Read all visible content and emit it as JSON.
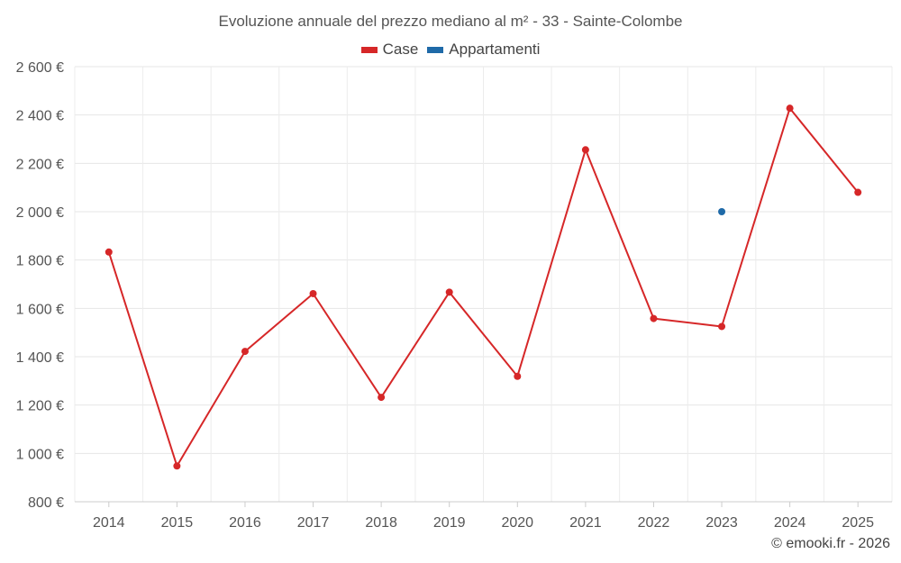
{
  "chart_data": {
    "type": "line",
    "title": "Evoluzione annuale del prezzo mediano al m² - 33 - Sainte-Colombe",
    "categories": [
      "2014",
      "2015",
      "2016",
      "2017",
      "2018",
      "2019",
      "2020",
      "2021",
      "2022",
      "2023",
      "2024",
      "2025"
    ],
    "series": [
      {
        "name": "Case",
        "color": "#d62728",
        "values": [
          1833,
          948,
          1422,
          1661,
          1232,
          1667,
          1319,
          2256,
          1558,
          1525,
          2428,
          2080
        ]
      },
      {
        "name": "Appartamenti",
        "color": "#1f6aa8",
        "values": [
          null,
          null,
          null,
          null,
          null,
          null,
          null,
          null,
          null,
          2000,
          null,
          null
        ]
      }
    ],
    "ylim": [
      800,
      2600
    ],
    "yticks": [
      800,
      1000,
      1200,
      1400,
      1600,
      1800,
      2000,
      2200,
      2400,
      2600
    ],
    "ytick_labels": [
      "800 €",
      "1 000 €",
      "1 200 €",
      "1 400 €",
      "1 600 €",
      "1 800 €",
      "2 000 €",
      "2 200 €",
      "2 400 €",
      "2 600 €"
    ],
    "xlabel": "",
    "ylabel": "",
    "grid": true,
    "legend_position": "top-center"
  },
  "footer": {
    "credit": "© emooki.fr - 2026"
  }
}
